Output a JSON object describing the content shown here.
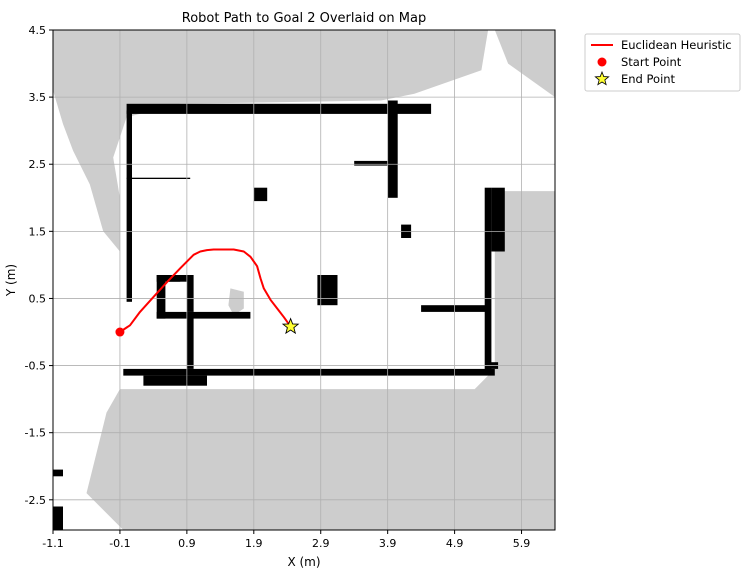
{
  "chart_data": {
    "type": "line",
    "title": "Robot Path to Goal 2 Overlaid on Map",
    "xlabel": "X (m)",
    "ylabel": "Y (m)",
    "xlim": [
      -1.1,
      6.4
    ],
    "ylim": [
      -2.95,
      4.5
    ],
    "xticks": [
      "-1.1",
      "-0.1",
      "0.9",
      "1.9",
      "2.9",
      "3.9",
      "4.9",
      "5.9"
    ],
    "yticks": [
      "4.5",
      "3.5",
      "2.5",
      "1.5",
      "0.5",
      "-0.5",
      "-1.5",
      "-2.5"
    ],
    "grid": true,
    "legend": "outside-top-right",
    "background": "occupancy-grid-map",
    "series": [
      {
        "name": "Euclidean Heuristic",
        "color": "#ff0000",
        "x": [
          -0.1,
          0.05,
          0.2,
          0.4,
          0.6,
          0.8,
          1.0,
          1.1,
          1.2,
          1.3,
          1.45,
          1.6,
          1.75,
          1.85,
          1.95,
          2.0,
          2.05,
          2.15,
          2.25,
          2.35,
          2.45
        ],
        "y": [
          0.0,
          0.1,
          0.3,
          0.52,
          0.74,
          0.95,
          1.15,
          1.2,
          1.22,
          1.23,
          1.23,
          1.23,
          1.2,
          1.12,
          0.98,
          0.8,
          0.65,
          0.48,
          0.35,
          0.22,
          0.08
        ]
      }
    ],
    "points": [
      {
        "name": "Start Point",
        "marker": "circle",
        "color": "#ff0000",
        "x": -0.1,
        "y": 0.0
      },
      {
        "name": "End Point",
        "marker": "star",
        "color": "#ffff33",
        "x": 2.45,
        "y": 0.08
      }
    ],
    "map": {
      "free_color": "#ffffff",
      "unknown_color": "#cdcdcd",
      "occupied_color": "#000000",
      "unknown_regions": [
        [
          [
            -1.1,
            4.5
          ],
          [
            5.4,
            4.5
          ],
          [
            5.3,
            3.9
          ],
          [
            4.3,
            3.55
          ],
          [
            3.8,
            3.45
          ],
          [
            0.8,
            3.4
          ],
          [
            0.0,
            3.2
          ],
          [
            -0.2,
            2.6
          ],
          [
            -0.1,
            2.0
          ],
          [
            -0.1,
            1.2
          ],
          [
            -0.35,
            1.5
          ],
          [
            -0.55,
            2.2
          ],
          [
            -0.8,
            2.7
          ],
          [
            -0.95,
            3.1
          ],
          [
            -1.1,
            3.6
          ]
        ],
        [
          [
            5.5,
            4.5
          ],
          [
            6.4,
            4.5
          ],
          [
            6.4,
            3.5
          ],
          [
            5.7,
            4.0
          ]
        ],
        [
          [
            5.5,
            2.1
          ],
          [
            6.4,
            2.1
          ],
          [
            6.4,
            -2.95
          ],
          [
            -0.05,
            -2.95
          ],
          [
            -0.6,
            -2.4
          ],
          [
            -0.4,
            -1.6
          ],
          [
            -0.3,
            -1.2
          ],
          [
            -0.1,
            -0.85
          ],
          [
            5.2,
            -0.85
          ],
          [
            5.5,
            -0.55
          ]
        ],
        [
          [
            1.55,
            0.65
          ],
          [
            1.75,
            0.6
          ],
          [
            1.75,
            0.35
          ],
          [
            1.6,
            0.25
          ],
          [
            1.52,
            0.4
          ]
        ]
      ],
      "walls": [
        [
          [
            0.0,
            3.25
          ],
          [
            4.55,
            3.4
          ]
        ],
        [
          [
            0.0,
            0.45
          ],
          [
            0.08,
            3.3
          ]
        ],
        [
          [
            0.0,
            2.28
          ],
          [
            0.95,
            2.3
          ]
        ],
        [
          [
            3.9,
            2.0
          ],
          [
            4.05,
            3.45
          ]
        ],
        [
          [
            3.4,
            2.48
          ],
          [
            3.95,
            2.55
          ]
        ],
        [
          [
            0.6,
            0.75
          ],
          [
            0.8,
            0.85
          ]
        ],
        [
          [
            0.45,
            0.2
          ],
          [
            1.85,
            0.3
          ]
        ],
        [
          [
            5.35,
            -0.6
          ],
          [
            5.45,
            2.15
          ]
        ],
        [
          [
            5.45,
            1.2
          ],
          [
            5.65,
            2.15
          ]
        ],
        [
          [
            4.4,
            0.3
          ],
          [
            5.4,
            0.4
          ]
        ],
        [
          [
            5.4,
            -0.55
          ],
          [
            5.55,
            -0.45
          ]
        ],
        [
          [
            -0.05,
            -0.65
          ],
          [
            5.5,
            -0.55
          ]
        ],
        [
          [
            0.25,
            -0.8
          ],
          [
            1.2,
            -0.65
          ]
        ],
        [
          [
            0.45,
            0.2
          ],
          [
            0.58,
            0.85
          ]
        ],
        [
          [
            0.45,
            0.75
          ],
          [
            1.0,
            0.85
          ]
        ],
        [
          [
            0.9,
            0.3
          ],
          [
            1.0,
            0.85
          ]
        ],
        [
          [
            0.9,
            -0.55
          ],
          [
            1.0,
            0.3
          ]
        ],
        [
          [
            1.9,
            1.95
          ],
          [
            2.1,
            2.15
          ]
        ],
        [
          [
            4.1,
            1.4
          ],
          [
            4.25,
            1.6
          ]
        ],
        [
          [
            2.85,
            0.4
          ],
          [
            3.15,
            0.85
          ]
        ],
        [
          [
            -1.1,
            -2.95
          ],
          [
            -0.95,
            -2.6
          ]
        ],
        [
          [
            -1.1,
            -2.15
          ],
          [
            -0.95,
            -2.05
          ]
        ]
      ]
    }
  }
}
